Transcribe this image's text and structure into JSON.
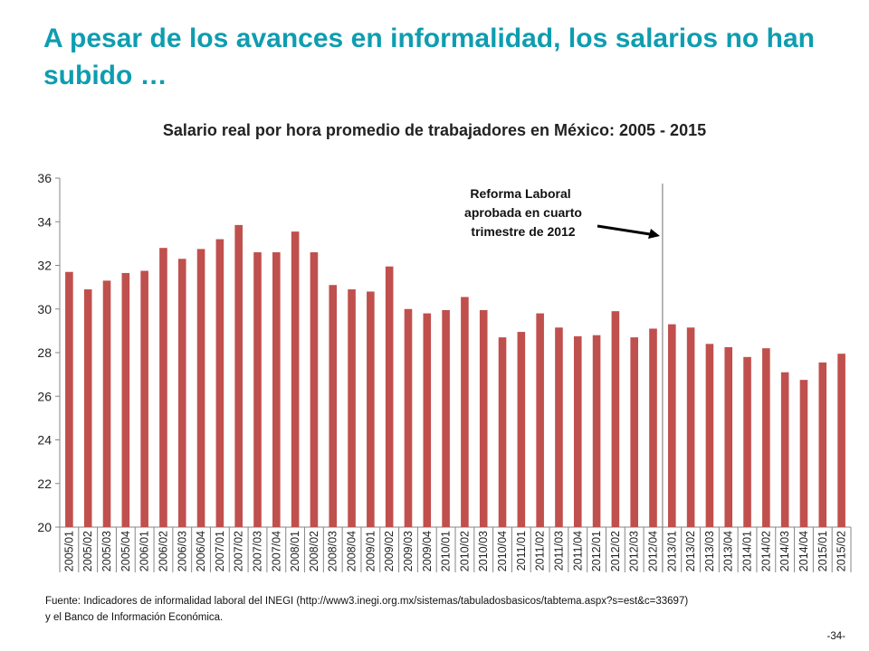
{
  "slide": {
    "title": "A pesar de los avances en informalidad,  los salarios no han subido …",
    "source_line1": "Fuente: Indicadores de informalidad laboral del INEGI (http://www3.inegi.org.mx/sistemas/tabuladosbasicos/tabtema.aspx?s=est&c=33697)",
    "source_line2": "y el Banco de Información Económica.",
    "page_number": "-34-"
  },
  "chart_data": {
    "type": "bar",
    "title": "Salario real por hora promedio de trabajadores  en México: 2005 - 2015",
    "xlabel": "",
    "ylabel": "",
    "ylim": [
      20,
      36
    ],
    "yticks": [
      20,
      22,
      24,
      26,
      28,
      30,
      32,
      34,
      36
    ],
    "grid": false,
    "bar_color": "#C0504D",
    "categories": [
      "2005/01",
      "2005/02",
      "2005/03",
      "2005/04",
      "2006/01",
      "2006/02",
      "2006/03",
      "2006/04",
      "2007/01",
      "2007/02",
      "2007/03",
      "2007/04",
      "2008/01",
      "2008/02",
      "2008/03",
      "2008/04",
      "2009/01",
      "2009/02",
      "2009/03",
      "2009/04",
      "2010/01",
      "2010/02",
      "2010/03",
      "2010/04",
      "2011/01",
      "2011/02",
      "2011/03",
      "2011/04",
      "2012/01",
      "2012/02",
      "2012/03",
      "2012/04",
      "2013/01",
      "2013/02",
      "2013/03",
      "2013/04",
      "2014/01",
      "2014/02",
      "2014/03",
      "2014/04",
      "2015/01",
      "2015/02"
    ],
    "values": [
      31.7,
      30.9,
      31.3,
      31.65,
      31.75,
      32.8,
      32.3,
      32.75,
      33.2,
      33.85,
      32.6,
      32.6,
      33.55,
      32.6,
      31.1,
      30.9,
      30.8,
      31.95,
      30.0,
      29.8,
      29.95,
      30.55,
      29.95,
      28.7,
      28.95,
      29.8,
      29.15,
      28.75,
      28.8,
      29.9,
      28.7,
      29.1,
      29.3,
      29.15,
      28.4,
      28.25,
      27.8,
      28.2,
      27.1,
      26.75,
      27.55,
      27.95
    ],
    "annotation": {
      "lines": [
        "Reforma Laboral",
        "aprobada en cuarto",
        "trimestre de 2012"
      ],
      "marker_after_category": "2012/04"
    }
  }
}
